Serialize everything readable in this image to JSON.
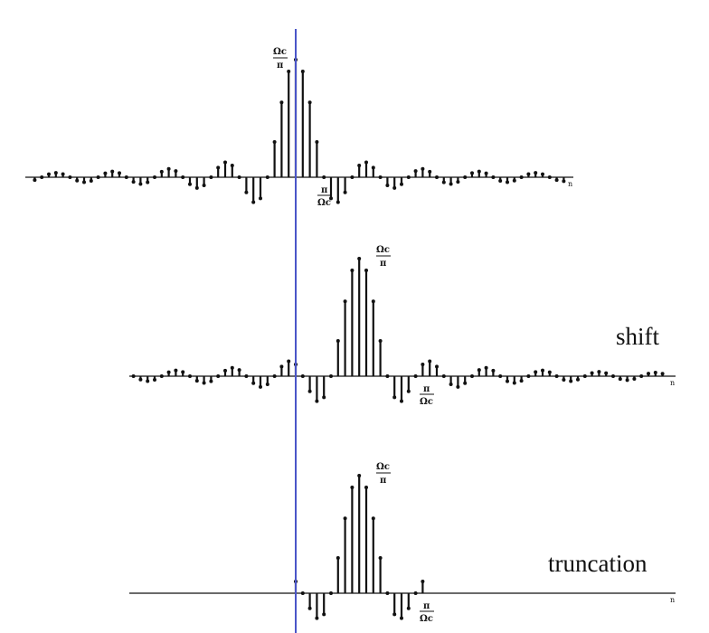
{
  "panels": [
    {
      "id": "original",
      "caption": "",
      "peak_label_num": "Ωc",
      "peak_label_den": "π",
      "zero_label_num": "π",
      "zero_label_den": "Ωc",
      "axis_label": "n",
      "truncated": false,
      "shift_samples": 0
    },
    {
      "id": "shifted",
      "caption": "shift",
      "peak_label_num": "Ωc",
      "peak_label_den": "π",
      "zero_label_num": "π",
      "zero_label_den": "Ωc",
      "axis_label": "n",
      "truncated": false,
      "shift_samples": 9
    },
    {
      "id": "truncated",
      "caption": "truncation",
      "peak_label_num": "Ωc",
      "peak_label_den": "π",
      "zero_label_num": "π",
      "zero_label_den": "Ωc",
      "axis_label": "n",
      "truncated": true,
      "shift_samples": 9
    }
  ],
  "colors": {
    "stem": "#111111",
    "axis": "#111111",
    "reference_line": "#4a55c8"
  }
}
